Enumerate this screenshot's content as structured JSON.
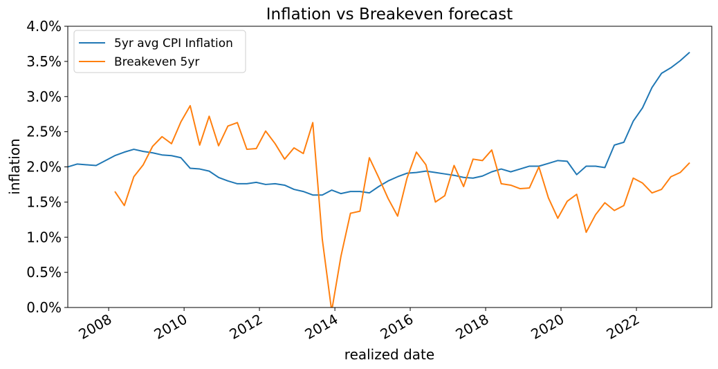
{
  "chart_data": {
    "type": "line",
    "title": "Inflation vs Breakeven forecast",
    "xlabel": "realized date",
    "ylabel": "inflation",
    "ylim": [
      0.0,
      4.0
    ],
    "xlim": [
      "2006-12-01",
      "2024-01-01"
    ],
    "grid": false,
    "legend_position": "top-left",
    "y_ticks": [
      {
        "value": 0.0,
        "label": "0.0%"
      },
      {
        "value": 0.5,
        "label": "0.5%"
      },
      {
        "value": 1.0,
        "label": "1.0%"
      },
      {
        "value": 1.5,
        "label": "1.5%"
      },
      {
        "value": 2.0,
        "label": "2.0%"
      },
      {
        "value": 2.5,
        "label": "2.5%"
      },
      {
        "value": 3.0,
        "label": "3.0%"
      },
      {
        "value": 3.5,
        "label": "3.5%"
      },
      {
        "value": 4.0,
        "label": "4.0%"
      }
    ],
    "x_ticks": [
      {
        "value": "2008-01-01",
        "label": "2008"
      },
      {
        "value": "2010-01-01",
        "label": "2010"
      },
      {
        "value": "2012-01-01",
        "label": "2012"
      },
      {
        "value": "2014-01-01",
        "label": "2014"
      },
      {
        "value": "2016-01-01",
        "label": "2016"
      },
      {
        "value": "2018-01-01",
        "label": "2018"
      },
      {
        "value": "2020-01-01",
        "label": "2020"
      },
      {
        "value": "2022-01-01",
        "label": "2022"
      }
    ],
    "series": [
      {
        "name": "5yr avg CPI Inflation",
        "color": "#1f77b4",
        "points": [
          [
            "2006-12-01",
            2.0
          ],
          [
            "2007-03-01",
            2.04
          ],
          [
            "2007-06-01",
            2.03
          ],
          [
            "2007-09-01",
            2.02
          ],
          [
            "2007-12-01",
            2.09
          ],
          [
            "2008-03-01",
            2.16
          ],
          [
            "2008-06-01",
            2.21
          ],
          [
            "2008-09-01",
            2.25
          ],
          [
            "2008-12-01",
            2.22
          ],
          [
            "2009-03-01",
            2.2
          ],
          [
            "2009-06-01",
            2.17
          ],
          [
            "2009-09-01",
            2.16
          ],
          [
            "2009-12-01",
            2.13
          ],
          [
            "2010-03-01",
            1.98
          ],
          [
            "2010-06-01",
            1.97
          ],
          [
            "2010-09-01",
            1.94
          ],
          [
            "2010-12-01",
            1.85
          ],
          [
            "2011-03-01",
            1.8
          ],
          [
            "2011-06-01",
            1.76
          ],
          [
            "2011-09-01",
            1.76
          ],
          [
            "2011-12-01",
            1.78
          ],
          [
            "2012-03-01",
            1.75
          ],
          [
            "2012-06-01",
            1.76
          ],
          [
            "2012-09-01",
            1.74
          ],
          [
            "2012-12-01",
            1.68
          ],
          [
            "2013-03-01",
            1.65
          ],
          [
            "2013-06-01",
            1.6
          ],
          [
            "2013-09-01",
            1.6
          ],
          [
            "2013-12-01",
            1.67
          ],
          [
            "2014-03-01",
            1.62
          ],
          [
            "2014-06-01",
            1.65
          ],
          [
            "2014-09-01",
            1.65
          ],
          [
            "2014-12-01",
            1.63
          ],
          [
            "2015-03-01",
            1.72
          ],
          [
            "2015-06-01",
            1.8
          ],
          [
            "2015-09-01",
            1.86
          ],
          [
            "2015-12-01",
            1.91
          ],
          [
            "2016-03-01",
            1.92
          ],
          [
            "2016-06-01",
            1.94
          ],
          [
            "2016-09-01",
            1.92
          ],
          [
            "2016-12-01",
            1.9
          ],
          [
            "2017-03-01",
            1.88
          ],
          [
            "2017-06-01",
            1.85
          ],
          [
            "2017-09-01",
            1.84
          ],
          [
            "2017-12-01",
            1.87
          ],
          [
            "2018-03-01",
            1.93
          ],
          [
            "2018-06-01",
            1.97
          ],
          [
            "2018-09-01",
            1.93
          ],
          [
            "2018-12-01",
            1.97
          ],
          [
            "2019-03-01",
            2.01
          ],
          [
            "2019-06-01",
            2.01
          ],
          [
            "2019-09-01",
            2.05
          ],
          [
            "2019-12-01",
            2.09
          ],
          [
            "2020-03-01",
            2.08
          ],
          [
            "2020-06-01",
            1.89
          ],
          [
            "2020-09-01",
            2.01
          ],
          [
            "2020-12-01",
            2.01
          ],
          [
            "2021-03-01",
            1.99
          ],
          [
            "2021-06-01",
            2.31
          ],
          [
            "2021-09-01",
            2.35
          ],
          [
            "2021-12-01",
            2.65
          ],
          [
            "2022-03-01",
            2.84
          ],
          [
            "2022-06-01",
            3.13
          ],
          [
            "2022-09-01",
            3.33
          ],
          [
            "2022-12-01",
            3.41
          ],
          [
            "2023-03-01",
            3.51
          ],
          [
            "2023-06-01",
            3.63
          ]
        ]
      },
      {
        "name": "Breakeven 5yr",
        "color": "#ff7f0e",
        "points": [
          [
            "2008-03-01",
            1.65
          ],
          [
            "2008-06-01",
            1.45
          ],
          [
            "2008-09-01",
            1.86
          ],
          [
            "2008-12-01",
            2.03
          ],
          [
            "2009-03-01",
            2.29
          ],
          [
            "2009-06-01",
            2.43
          ],
          [
            "2009-09-01",
            2.33
          ],
          [
            "2009-12-01",
            2.64
          ],
          [
            "2010-03-01",
            2.87
          ],
          [
            "2010-06-01",
            2.31
          ],
          [
            "2010-09-01",
            2.72
          ],
          [
            "2010-12-01",
            2.3
          ],
          [
            "2011-03-01",
            2.58
          ],
          [
            "2011-06-01",
            2.63
          ],
          [
            "2011-09-01",
            2.25
          ],
          [
            "2011-12-01",
            2.26
          ],
          [
            "2012-03-01",
            2.51
          ],
          [
            "2012-06-01",
            2.33
          ],
          [
            "2012-09-01",
            2.11
          ],
          [
            "2012-12-01",
            2.27
          ],
          [
            "2013-03-01",
            2.19
          ],
          [
            "2013-06-01",
            2.63
          ],
          [
            "2013-09-01",
            0.97
          ],
          [
            "2013-12-01",
            -0.05
          ],
          [
            "2014-03-01",
            0.73
          ],
          [
            "2014-06-01",
            1.34
          ],
          [
            "2014-09-01",
            1.37
          ],
          [
            "2014-12-01",
            2.13
          ],
          [
            "2015-03-01",
            1.85
          ],
          [
            "2015-06-01",
            1.55
          ],
          [
            "2015-09-01",
            1.3
          ],
          [
            "2015-12-01",
            1.84
          ],
          [
            "2016-03-01",
            2.21
          ],
          [
            "2016-06-01",
            2.03
          ],
          [
            "2016-09-01",
            1.5
          ],
          [
            "2016-12-01",
            1.59
          ],
          [
            "2017-03-01",
            2.02
          ],
          [
            "2017-06-01",
            1.72
          ],
          [
            "2017-09-01",
            2.11
          ],
          [
            "2017-12-01",
            2.09
          ],
          [
            "2018-03-01",
            2.24
          ],
          [
            "2018-06-01",
            1.76
          ],
          [
            "2018-09-01",
            1.74
          ],
          [
            "2018-12-01",
            1.69
          ],
          [
            "2019-03-01",
            1.7
          ],
          [
            "2019-06-01",
            2.0
          ],
          [
            "2019-09-01",
            1.56
          ],
          [
            "2019-12-01",
            1.27
          ],
          [
            "2020-03-01",
            1.51
          ],
          [
            "2020-06-01",
            1.61
          ],
          [
            "2020-09-01",
            1.07
          ],
          [
            "2020-12-01",
            1.32
          ],
          [
            "2021-03-01",
            1.49
          ],
          [
            "2021-06-01",
            1.38
          ],
          [
            "2021-09-01",
            1.45
          ],
          [
            "2021-12-01",
            1.84
          ],
          [
            "2022-03-01",
            1.77
          ],
          [
            "2022-06-01",
            1.63
          ],
          [
            "2022-09-01",
            1.68
          ],
          [
            "2022-12-01",
            1.86
          ],
          [
            "2023-03-01",
            1.92
          ],
          [
            "2023-06-01",
            2.06
          ]
        ]
      }
    ]
  }
}
